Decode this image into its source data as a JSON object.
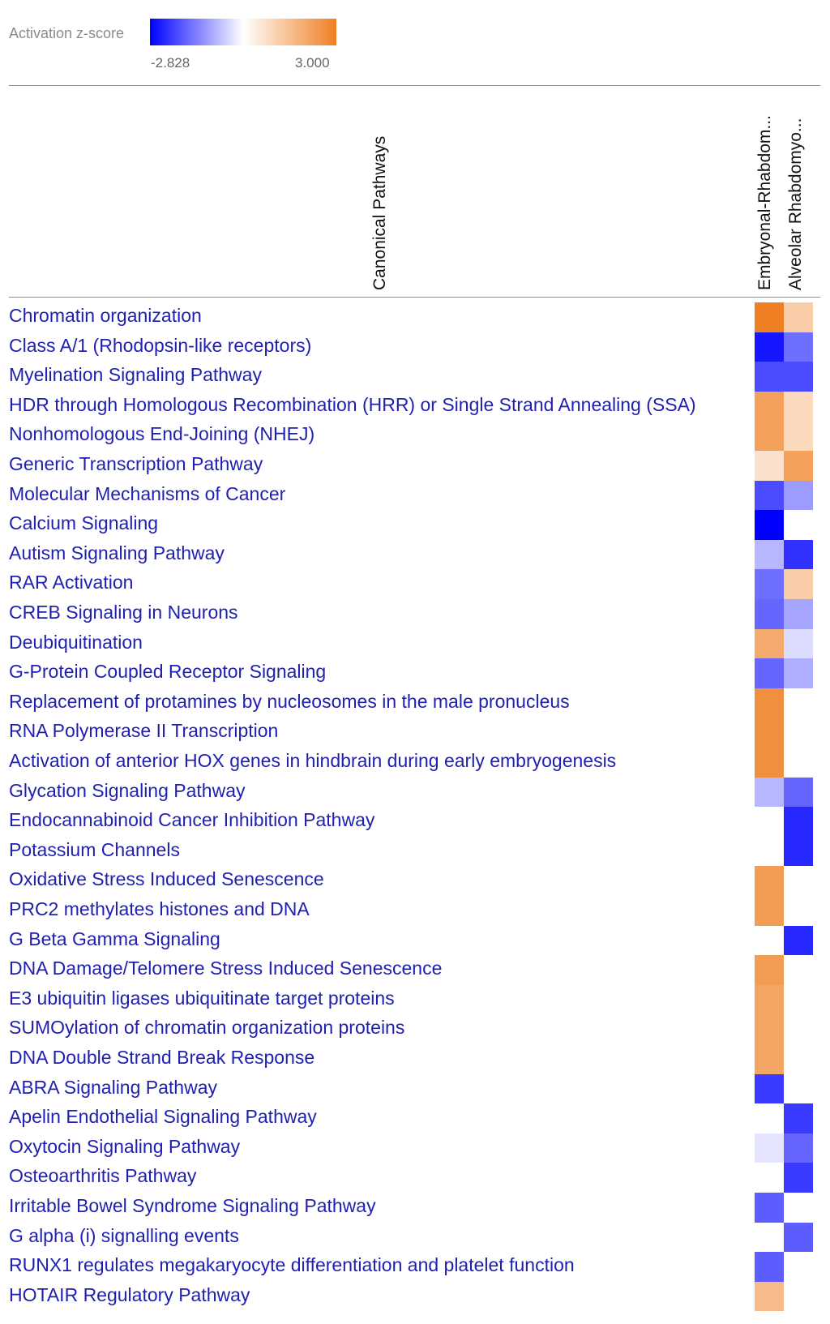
{
  "legend": {
    "title": "Activation z-score",
    "min_label": "-2.828",
    "max_label": "3.000",
    "min_color": "#0000ff",
    "mid_color": "#ffffff",
    "max_color": "#ee7f22"
  },
  "chart_data": {
    "type": "heatmap",
    "title": "",
    "row_header": "Canonical Pathways",
    "columns": [
      "Embryonal-Rhabdom...",
      "Alveolar Rhabdomyo..."
    ],
    "value_range": [
      -2.828,
      3.0
    ],
    "rows": [
      {
        "label": "Chromatin organization",
        "values": [
          3.0,
          1.2
        ]
      },
      {
        "label": "Class A/1 (Rhodopsin-like receptors)",
        "values": [
          -2.6,
          -1.6
        ]
      },
      {
        "label": "Myelination Signaling Pathway",
        "values": [
          -2.0,
          -2.0
        ]
      },
      {
        "label": "HDR through Homologous Recombination (HRR) or Single Strand Annealing (SSA)",
        "values": [
          2.2,
          0.9
        ]
      },
      {
        "label": "Nonhomologous End-Joining (NHEJ)",
        "values": [
          2.2,
          0.9
        ]
      },
      {
        "label": "Generic Transcription Pathway",
        "values": [
          0.7,
          2.2
        ]
      },
      {
        "label": "Molecular Mechanisms of Cancer",
        "values": [
          -2.0,
          -1.1
        ]
      },
      {
        "label": "Calcium Signaling",
        "values": [
          -2.828,
          null
        ]
      },
      {
        "label": "Autism Signaling Pathway",
        "values": [
          -0.8,
          -2.3
        ]
      },
      {
        "label": "RAR Activation",
        "values": [
          -1.6,
          1.2
        ]
      },
      {
        "label": "CREB Signaling in Neurons",
        "values": [
          -1.7,
          -1.0
        ]
      },
      {
        "label": "Deubiquitination",
        "values": [
          2.0,
          -0.4
        ]
      },
      {
        "label": "G-Protein Coupled Receptor Signaling",
        "values": [
          -1.7,
          -0.9
        ]
      },
      {
        "label": "Replacement of protamines by nucleosomes in the male pronucleus",
        "values": [
          2.6,
          null
        ]
      },
      {
        "label": "RNA Polymerase II Transcription",
        "values": [
          2.6,
          null
        ]
      },
      {
        "label": "Activation of anterior HOX genes in hindbrain during early embryogenesis",
        "values": [
          2.6,
          null
        ]
      },
      {
        "label": "Glycation Signaling Pathway",
        "values": [
          -0.8,
          -1.7
        ]
      },
      {
        "label": "Endocannabinoid Cancer Inhibition Pathway",
        "values": [
          null,
          -2.4
        ]
      },
      {
        "label": "Potassium Channels",
        "values": [
          null,
          -2.4
        ]
      },
      {
        "label": "Oxidative Stress Induced Senescence",
        "values": [
          2.3,
          null
        ]
      },
      {
        "label": "PRC2 methylates histones and DNA",
        "values": [
          2.3,
          null
        ]
      },
      {
        "label": "G Beta Gamma Signaling",
        "values": [
          null,
          -2.4
        ]
      },
      {
        "label": "DNA Damage/Telomere Stress Induced Senescence",
        "values": [
          2.3,
          null
        ]
      },
      {
        "label": "E3 ubiquitin ligases ubiquitinate target proteins",
        "values": [
          2.1,
          null
        ]
      },
      {
        "label": "SUMOylation of chromatin organization proteins",
        "values": [
          2.1,
          null
        ]
      },
      {
        "label": "DNA Double Strand Break Response",
        "values": [
          2.1,
          null
        ]
      },
      {
        "label": "ABRA Signaling Pathway",
        "values": [
          -2.2,
          null
        ]
      },
      {
        "label": "Apelin Endothelial Signaling Pathway",
        "values": [
          null,
          -2.2
        ]
      },
      {
        "label": "Oxytocin Signaling Pathway",
        "values": [
          -0.3,
          -1.7
        ]
      },
      {
        "label": "Osteoarthritis Pathway",
        "values": [
          null,
          -2.2
        ]
      },
      {
        "label": "Irritable Bowel Syndrome Signaling Pathway",
        "values": [
          -1.8,
          null
        ]
      },
      {
        "label": "G alpha (i) signalling events",
        "values": [
          null,
          -1.8
        ]
      },
      {
        "label": "RUNX1 regulates megakaryocyte differentiation and platelet function",
        "values": [
          -1.8,
          null
        ]
      },
      {
        "label": "HOTAIR Regulatory Pathway",
        "values": [
          1.6,
          null
        ]
      }
    ]
  }
}
